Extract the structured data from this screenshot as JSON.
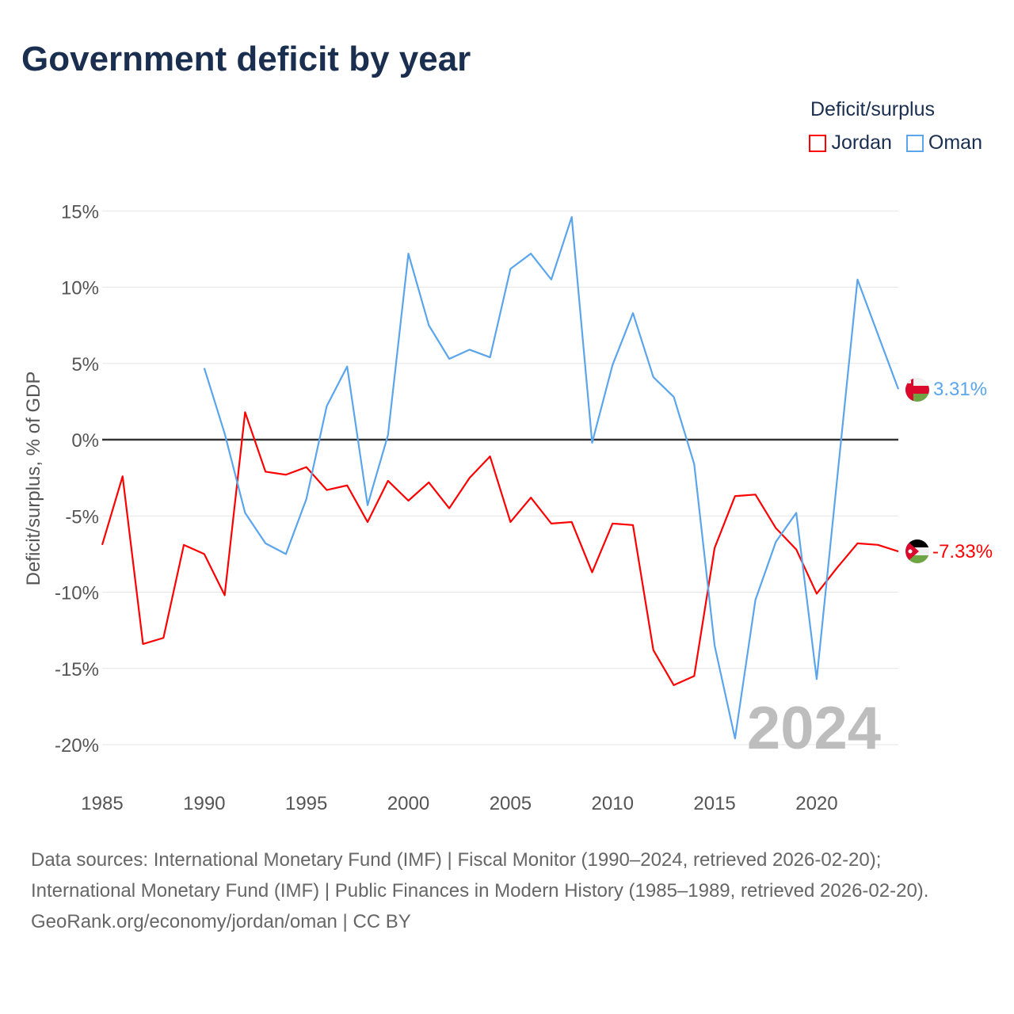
{
  "title": "Government deficit by year",
  "legend": {
    "title": "Deficit/surplus",
    "items": [
      {
        "name": "Jordan",
        "color": "#ff0000"
      },
      {
        "name": "Oman",
        "color": "#5aa5ec"
      }
    ]
  },
  "watermark_year": "2024",
  "footer": {
    "sources": "Data sources: International Monetary Fund (IMF) | Fiscal Monitor (1990–2024, retrieved 2026-02-20); International Monetary Fund (IMF) | Public Finances in Modern History (1985–1989, retrieved 2026-02-20).",
    "credit": "GeoRank.org/economy/jordan/oman | CC BY"
  },
  "chart_data": {
    "type": "line",
    "title": "Government deficit by year",
    "xlabel": "",
    "ylabel": "Deficit/surplus, % of GDP",
    "xlim": [
      1985,
      2024
    ],
    "ylim": [
      -20,
      15
    ],
    "xticks": [
      1985,
      1990,
      1995,
      2000,
      2005,
      2010,
      2015,
      2020
    ],
    "yticks": [
      15,
      10,
      5,
      0,
      -5,
      -10,
      -15,
      -20
    ],
    "ytick_labels": [
      "15%",
      "10%",
      "5%",
      "0%",
      "-5%",
      "-10%",
      "-15%",
      "-20%"
    ],
    "grid": true,
    "legend_position": "top-right",
    "series": [
      {
        "name": "Jordan",
        "color": "#ff0000",
        "end_label": "-7.33%",
        "x": [
          1985,
          1986,
          1987,
          1988,
          1989,
          1990,
          1991,
          1992,
          1993,
          1994,
          1995,
          1996,
          1997,
          1998,
          1999,
          2000,
          2001,
          2002,
          2003,
          2004,
          2005,
          2006,
          2007,
          2008,
          2009,
          2010,
          2011,
          2012,
          2013,
          2014,
          2015,
          2016,
          2017,
          2018,
          2019,
          2020,
          2021,
          2022,
          2023,
          2024
        ],
        "values": [
          -6.9,
          -2.4,
          -13.4,
          -13.0,
          -6.9,
          -7.5,
          -10.2,
          1.8,
          -2.1,
          -2.3,
          -1.8,
          -3.3,
          -3.0,
          -5.4,
          -2.7,
          -4.0,
          -2.8,
          -4.5,
          -2.5,
          -1.1,
          -5.4,
          -3.8,
          -5.5,
          -5.4,
          -8.7,
          -5.5,
          -5.6,
          -13.8,
          -16.1,
          -15.5,
          -7.1,
          -3.7,
          -3.6,
          -5.8,
          -7.2,
          -10.1,
          -8.4,
          -6.8,
          -6.9,
          -7.33
        ]
      },
      {
        "name": "Oman",
        "color": "#5aa5ec",
        "end_label": "3.31%",
        "x": [
          1990,
          1991,
          1992,
          1993,
          1994,
          1995,
          1996,
          1997,
          1998,
          1999,
          2000,
          2001,
          2002,
          2003,
          2004,
          2005,
          2006,
          2007,
          2008,
          2009,
          2010,
          2011,
          2012,
          2013,
          2014,
          2015,
          2016,
          2017,
          2018,
          2019,
          2020,
          2021,
          2022,
          2023,
          2024
        ],
        "values": [
          4.7,
          0.4,
          -4.8,
          -6.8,
          -7.5,
          -3.9,
          2.2,
          4.8,
          -4.3,
          0.3,
          12.2,
          7.5,
          5.3,
          5.9,
          5.4,
          11.2,
          12.2,
          10.5,
          14.6,
          -0.2,
          4.9,
          8.3,
          4.1,
          2.8,
          -1.6,
          -13.5,
          -19.6,
          -10.5,
          -6.7,
          -4.8,
          -15.7,
          -2.6,
          10.5,
          6.9,
          3.31
        ]
      }
    ]
  }
}
